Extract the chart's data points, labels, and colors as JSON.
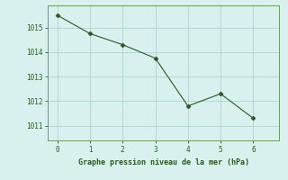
{
  "x": [
    0,
    1,
    2,
    3,
    4,
    5,
    6
  ],
  "y": [
    1015.5,
    1014.75,
    1014.3,
    1013.75,
    1011.8,
    1012.3,
    1011.3
  ],
  "line_color": "#2d5a1b",
  "marker": "D",
  "marker_size": 2.5,
  "background_color": "#d8f0ee",
  "grid_color": "#b0d4d0",
  "xlabel": "Graphe pression niveau de la mer (hPa)",
  "xlabel_color": "#2d5a1b",
  "tick_color": "#2d5a1b",
  "spine_color": "#6a9a60",
  "xlim": [
    -0.3,
    6.8
  ],
  "ylim": [
    1010.4,
    1015.9
  ],
  "yticks": [
    1011,
    1012,
    1013,
    1014,
    1015
  ],
  "xticks": [
    0,
    1,
    2,
    3,
    4,
    5,
    6
  ]
}
